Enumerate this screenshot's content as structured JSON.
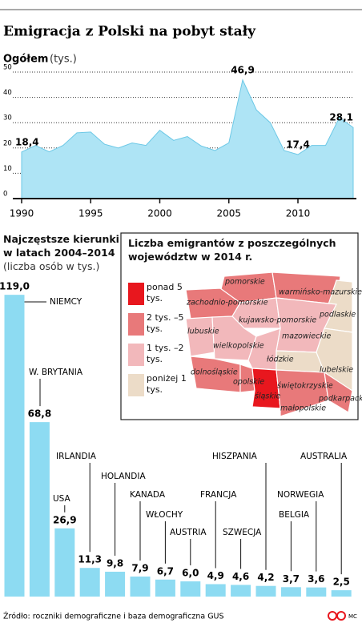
{
  "header": {
    "title": "Emigracja z Polski na pobyt stały"
  },
  "chart_data": [
    {
      "type": "area",
      "title": "Ogółem",
      "subtitle": "(tys.)",
      "x": [
        1990,
        1991,
        1992,
        1993,
        1994,
        1995,
        1996,
        1997,
        1998,
        1999,
        2000,
        2001,
        2002,
        2003,
        2004,
        2005,
        2006,
        2007,
        2008,
        2009,
        2010,
        2011,
        2012,
        2013,
        2014
      ],
      "values": [
        18.4,
        21,
        18.5,
        21,
        26,
        26.3,
        21.5,
        20,
        22,
        21,
        27,
        23,
        24.5,
        20.8,
        19,
        22,
        46.9,
        35,
        30,
        19,
        17.4,
        21,
        21,
        32,
        28.1
      ],
      "value_labels": [
        "18,4",
        null,
        null,
        null,
        null,
        null,
        null,
        null,
        null,
        null,
        null,
        null,
        null,
        null,
        null,
        null,
        "46,9",
        null,
        null,
        null,
        "17,4",
        null,
        null,
        null,
        "28,1"
      ],
      "xlim": [
        1990,
        2014
      ],
      "ylim": [
        0,
        50
      ],
      "xticks": [
        1990,
        1995,
        2000,
        2005,
        2010
      ],
      "yticks": [
        0,
        10,
        20,
        30,
        40,
        50
      ],
      "color": "#aee4f5",
      "grid": true
    },
    {
      "type": "bar",
      "title": "Najczęstsze kierunki w latach 2004–2014",
      "subtitle": "(liczba osób w tys.)",
      "categories": [
        "NIEMCY",
        "W. BRYTANIA",
        "USA",
        "IRLANDIA",
        "HOLANDIA",
        "KANADA",
        "WŁOCHY",
        "AUSTRIA",
        "FRANCJA",
        "SZWECJA",
        "HISZPANIA",
        "BELGIA",
        "NORWEGIA",
        "AUSTRALIA"
      ],
      "values": [
        119.0,
        68.8,
        26.9,
        11.3,
        9.8,
        7.9,
        6.7,
        6.0,
        4.9,
        4.6,
        4.2,
        3.7,
        3.6,
        2.5
      ],
      "value_labels": [
        "119,0",
        "68,8",
        "26,9",
        "11,3",
        "9,8",
        "7,9",
        "6,7",
        "6,0",
        "4,9",
        "4,6",
        "4,2",
        "3,7",
        "3,6",
        "2,5"
      ],
      "ylim": [
        0,
        120
      ],
      "color": "#8ddbf2"
    }
  ],
  "map": {
    "title": "Liczba emigrantów z poszczególnych województw w 2014 r.",
    "legend": [
      {
        "label": "ponad 5 tys.",
        "color": "#e8171e"
      },
      {
        "label": "2 tys. –5 tys.",
        "color": "#e8797a"
      },
      {
        "label": "1 tys. –2 tys.",
        "color": "#f2b8bb"
      },
      {
        "label": "poniżej 1 tys.",
        "color": "#ecdcc8"
      }
    ],
    "regions": [
      {
        "name": "pomorskie",
        "color": "#e8797a"
      },
      {
        "name": "zachodnio-pomorskie",
        "color": "#e8797a"
      },
      {
        "name": "warmińsko-mazurskie",
        "color": "#e8797a"
      },
      {
        "name": "podlaskie",
        "color": "#ecdcc8"
      },
      {
        "name": "kujawsko-pomorskie",
        "color": "#f2b8bb"
      },
      {
        "name": "lubuskie",
        "color": "#f2b8bb"
      },
      {
        "name": "wielkopolskie",
        "color": "#f2b8bb"
      },
      {
        "name": "mazowieckie",
        "color": "#f2b8bb"
      },
      {
        "name": "łódzkie",
        "color": "#f2b8bb"
      },
      {
        "name": "lubelskie",
        "color": "#ecdcc8"
      },
      {
        "name": "dolnośląskie",
        "color": "#e8797a"
      },
      {
        "name": "opolskie",
        "color": "#e8797a"
      },
      {
        "name": "śląskie",
        "color": "#e8171e"
      },
      {
        "name": "świętokrzyskie",
        "color": "#ecdcc8"
      },
      {
        "name": "małopolskie",
        "color": "#e8797a"
      },
      {
        "name": "podkarpackie",
        "color": "#e8797a"
      }
    ]
  },
  "footer": {
    "source": "Źródło: roczniki demograficzne i baza demograficzna GUS",
    "credit": "MC"
  }
}
